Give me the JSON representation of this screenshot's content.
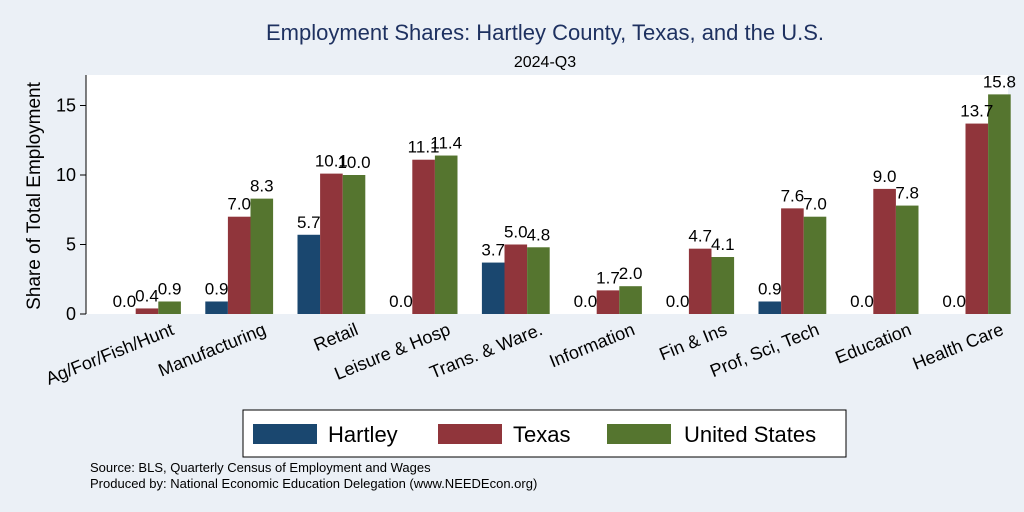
{
  "chart_data": {
    "type": "bar",
    "title": "Employment Shares: Hartley County, Texas, and the U.S.",
    "subtitle": "2024-Q3",
    "xlabel": "",
    "ylabel": "Share of Total Employment",
    "ylim": [
      0,
      17
    ],
    "yticks": [
      0,
      5,
      10,
      15
    ],
    "categories": [
      "Ag/For/Fish/Hunt",
      "Manufacturing",
      "Retail",
      "Leisure & Hosp",
      "Trans. & Ware.",
      "Information",
      "Fin & Ins",
      "Prof, Sci, Tech",
      "Education",
      "Health Care"
    ],
    "series": [
      {
        "name": "Hartley",
        "color": "#1a476f",
        "values": [
          0.0,
          0.9,
          5.7,
          0.0,
          3.7,
          0.0,
          0.0,
          0.9,
          0.0,
          0.0
        ]
      },
      {
        "name": "Texas",
        "color": "#90353b",
        "values": [
          0.4,
          7.0,
          10.1,
          11.1,
          5.0,
          1.7,
          4.7,
          7.6,
          9.0,
          13.7
        ]
      },
      {
        "name": "United States",
        "color": "#55752f",
        "values": [
          0.9,
          8.3,
          10.0,
          11.4,
          4.8,
          2.0,
          4.1,
          7.0,
          7.8,
          15.8
        ]
      }
    ],
    "legend_position": "bottom",
    "grid": false
  },
  "footer": {
    "source": "Source: BLS, Quarterly Census of Employment and Wages",
    "produced_by": "Produced by: National Economic Education Delegation (www.NEEDEcon.org)"
  }
}
